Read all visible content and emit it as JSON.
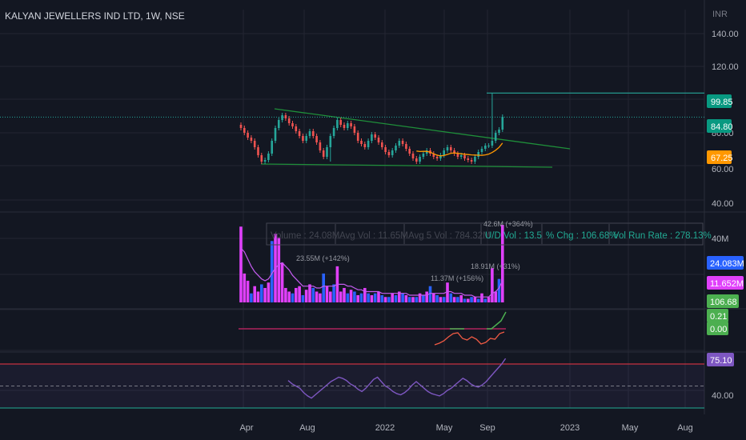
{
  "header": {
    "title": "KALYAN JEWELLERS IND LTD, 1W, NSE",
    "currency": "INR"
  },
  "colors": {
    "background": "#131722",
    "grid": "#232632",
    "up": "#26a69a",
    "down": "#ef5350",
    "trendline": "#1f8f3a",
    "sma": "#ff9800",
    "vol_pink": "#e040fb",
    "vol_blue": "#2962ff",
    "vol_ma": "#c45cf0",
    "rsi": "#7e57c2",
    "rsi_upper": "#f23645",
    "rsi_lower": "#22ab94",
    "osc_main": "#f05a44",
    "osc_signal": "#4caf50",
    "osc_base": "#b0245c"
  },
  "chart_data": [
    {
      "type": "candlestick",
      "title": "KALYAN JEWELLERS IND LTD, 1W, NSE",
      "x_ticks": [
        "Apr",
        "Aug",
        "2022",
        "May",
        "Sep",
        "2023",
        "May",
        "Aug"
      ],
      "y_ticks": [
        "140.00",
        "120.00",
        "80.00",
        "60.00",
        "40.00"
      ],
      "ylim": [
        27,
        152
      ],
      "close": [
        78,
        75,
        72,
        70,
        66,
        61,
        57,
        58,
        62,
        70,
        78,
        83,
        86,
        84,
        81,
        79,
        76,
        73,
        70,
        73,
        76,
        73,
        69,
        64,
        60,
        66,
        73,
        78,
        83,
        80,
        78,
        81,
        79,
        75,
        70,
        68,
        66,
        70,
        74,
        72,
        69,
        66,
        63,
        61,
        64,
        67,
        70,
        68,
        65,
        62,
        59,
        57,
        60,
        62,
        64,
        62,
        60,
        59,
        61,
        64,
        66,
        64,
        62,
        60,
        61,
        59,
        58,
        57,
        60,
        63,
        65,
        67,
        67,
        70,
        75,
        77,
        85
      ],
      "high_low_extremes": {
        "tall_spike_high": 99.85,
        "gap_low": 57
      },
      "last_price": 84.8,
      "price_labels": [
        {
          "value": "99.85",
          "color": "#089981"
        },
        {
          "value": "84.80",
          "color": "#089981"
        },
        {
          "value": "67.25",
          "color": "#ff9800"
        }
      ],
      "trendlines": [
        {
          "name": "descending resistance",
          "from": 90,
          "to": 65
        },
        {
          "name": "support",
          "value": 55
        }
      ],
      "horizontal_line": 99.85
    },
    {
      "type": "bar",
      "name": "Volume",
      "y_ticks": [
        "40M"
      ],
      "values_m": [
        42,
        16,
        12,
        5,
        9,
        6,
        10,
        8,
        11,
        34,
        38,
        36,
        22,
        8,
        6,
        5,
        8,
        9,
        4,
        7,
        10,
        8,
        6,
        5,
        16,
        9,
        6,
        10,
        20,
        6,
        8,
        5,
        7,
        6,
        4,
        5,
        8,
        5,
        4,
        5,
        6,
        4,
        3,
        3,
        5,
        4,
        6,
        5,
        4,
        3,
        3,
        3,
        5,
        4,
        6,
        9,
        5,
        4,
        3,
        3,
        11,
        5,
        3,
        3,
        4,
        2,
        2,
        3,
        3,
        2,
        5,
        2,
        3,
        19,
        6,
        13,
        43
      ],
      "ma_values_m": [
        30,
        28,
        24,
        20,
        17,
        15,
        13,
        12,
        13,
        16,
        19,
        21,
        22,
        20,
        18,
        15,
        13,
        11,
        9,
        9,
        9,
        9,
        8,
        8,
        9,
        9,
        9,
        9,
        10,
        10,
        10,
        9,
        9,
        8,
        7,
        7,
        6,
        6,
        6,
        6,
        6,
        5,
        5,
        5,
        5,
        5,
        5,
        5,
        5,
        4,
        4,
        4,
        4,
        4,
        4,
        5,
        5,
        5,
        5,
        5,
        6,
        6,
        5,
        5,
        5,
        4,
        4,
        4,
        3,
        3,
        3,
        3,
        3,
        5,
        6,
        8,
        12
      ],
      "stats": [
        "Volume : 24.08M",
        "Avg Vol : 11.65M",
        "Avg 5 Vol : 784.32M",
        "U/D Vol : 13.5",
        "% Chg : 106.68%",
        "Vol Run Rate : 278.13%"
      ],
      "annotations": [
        "23.55M (+142%)",
        "11.37M (+156%)",
        "18.91M (+31%)",
        "42.6M (+364%)"
      ],
      "value_labels": [
        {
          "value": "24.083M",
          "color": "#2962ff"
        },
        {
          "value": "11.652M",
          "color": "#e040fb"
        }
      ]
    },
    {
      "type": "line",
      "name": "Oscillator",
      "y_ticks": [
        "0.21",
        "0.00"
      ],
      "main": [
        -0.2,
        -0.18,
        -0.15,
        -0.1,
        -0.06,
        -0.05,
        -0.12,
        -0.14,
        -0.1,
        -0.13,
        -0.19,
        -0.17,
        -0.12,
        -0.13,
        -0.06,
        -0.04
      ],
      "signal_segments": [
        [
          0.0,
          0.0
        ],
        [
          0.0,
          0.0,
          0.05,
          0.1,
          0.21
        ]
      ],
      "value_labels": [
        {
          "value": "106.68",
          "color": "#4caf50"
        },
        {
          "value": "0.21",
          "color": "#4caf50"
        },
        {
          "value": "0.00",
          "color": "#4caf50"
        }
      ]
    },
    {
      "type": "line",
      "name": "RSI",
      "y_ticks": [
        "40.00"
      ],
      "upper_band": 70,
      "mid_band": 50,
      "lower_band": 30,
      "values": [
        55,
        52,
        50,
        48,
        44,
        41,
        39,
        42,
        45,
        48,
        51,
        54,
        56,
        58,
        57,
        55,
        52,
        50,
        47,
        45,
        48,
        52,
        56,
        58,
        54,
        50,
        48,
        45,
        43,
        42,
        44,
        47,
        51,
        54,
        51,
        48,
        45,
        43,
        42,
        41,
        43,
        46,
        48,
        51,
        54,
        57,
        55,
        52,
        50,
        49,
        51,
        54,
        58,
        62,
        66,
        70,
        75
      ],
      "value_label": {
        "value": "75.10",
        "color": "#7e57c2"
      }
    }
  ]
}
